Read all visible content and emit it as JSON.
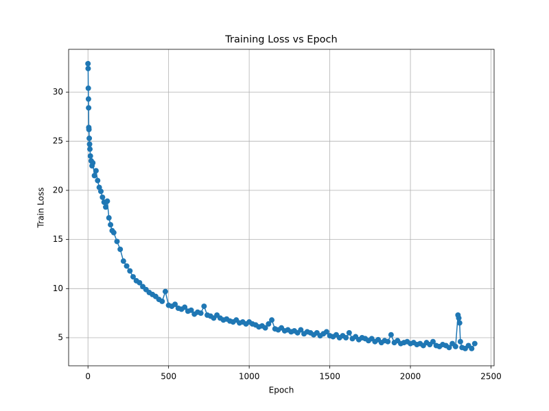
{
  "chart_data": {
    "type": "line",
    "title": "Training Loss vs Epoch",
    "x_label": "Epoch",
    "y_label": "Train Loss",
    "x": [
      0,
      1,
      2,
      3,
      4,
      5,
      6,
      8,
      10,
      12,
      15,
      20,
      25,
      30,
      40,
      50,
      60,
      70,
      80,
      90,
      100,
      110,
      120,
      130,
      140,
      150,
      160,
      180,
      200,
      220,
      240,
      260,
      280,
      300,
      320,
      340,
      360,
      380,
      400,
      420,
      440,
      460,
      480,
      500,
      520,
      540,
      560,
      580,
      600,
      620,
      640,
      660,
      680,
      700,
      720,
      740,
      760,
      780,
      800,
      820,
      840,
      860,
      880,
      900,
      920,
      940,
      960,
      980,
      1000,
      1020,
      1040,
      1060,
      1080,
      1100,
      1120,
      1140,
      1160,
      1180,
      1200,
      1220,
      1240,
      1260,
      1280,
      1300,
      1320,
      1340,
      1360,
      1380,
      1400,
      1420,
      1440,
      1460,
      1480,
      1500,
      1520,
      1540,
      1560,
      1580,
      1600,
      1620,
      1640,
      1660,
      1680,
      1700,
      1720,
      1740,
      1760,
      1780,
      1800,
      1820,
      1840,
      1860,
      1880,
      1900,
      1920,
      1940,
      1960,
      1980,
      2000,
      2020,
      2040,
      2060,
      2080,
      2100,
      2120,
      2140,
      2160,
      2180,
      2200,
      2220,
      2240,
      2260,
      2280,
      2295,
      2300,
      2305,
      2310,
      2320,
      2340,
      2360,
      2380,
      2399
    ],
    "series": [
      {
        "name": "Train Loss",
        "color": "#1f77b4",
        "values": [
          32.9,
          32.4,
          30.4,
          29.3,
          28.4,
          26.4,
          26.2,
          25.3,
          24.7,
          24.2,
          23.5,
          23.0,
          22.5,
          22.8,
          21.5,
          22.0,
          21.0,
          20.3,
          19.9,
          19.3,
          18.8,
          18.3,
          18.9,
          17.2,
          16.5,
          15.9,
          15.7,
          14.8,
          14.0,
          12.8,
          12.3,
          11.8,
          11.2,
          10.8,
          10.6,
          10.2,
          9.9,
          9.6,
          9.4,
          9.2,
          8.9,
          8.7,
          9.7,
          8.3,
          8.2,
          8.4,
          8.0,
          7.9,
          8.1,
          7.7,
          7.8,
          7.4,
          7.6,
          7.5,
          8.2,
          7.3,
          7.2,
          7.0,
          7.3,
          7.0,
          6.8,
          6.9,
          6.7,
          6.6,
          6.8,
          6.5,
          6.6,
          6.4,
          6.6,
          6.4,
          6.3,
          6.1,
          6.2,
          6.0,
          6.4,
          6.8,
          5.9,
          5.8,
          6.0,
          5.7,
          5.8,
          5.6,
          5.7,
          5.5,
          5.8,
          5.4,
          5.6,
          5.5,
          5.3,
          5.5,
          5.2,
          5.4,
          5.6,
          5.2,
          5.1,
          5.3,
          5.0,
          5.2,
          5.0,
          5.5,
          4.9,
          5.1,
          4.8,
          5.0,
          4.9,
          4.7,
          4.9,
          4.6,
          4.8,
          4.5,
          4.7,
          4.6,
          5.3,
          4.5,
          4.7,
          4.4,
          4.5,
          4.6,
          4.4,
          4.5,
          4.3,
          4.4,
          4.2,
          4.5,
          4.3,
          4.6,
          4.2,
          4.1,
          4.3,
          4.2,
          4.0,
          4.4,
          4.1,
          7.3,
          7.0,
          6.5,
          4.6,
          4.0,
          3.9,
          4.2,
          3.9,
          4.4
        ]
      }
    ],
    "xlim": [
      -120,
      2519
    ],
    "ylim": [
      2.14,
      34.36
    ],
    "xticks": [
      0,
      500,
      1000,
      1500,
      2000,
      2500
    ],
    "yticks": [
      5,
      10,
      15,
      20,
      25,
      30
    ],
    "grid": true
  }
}
